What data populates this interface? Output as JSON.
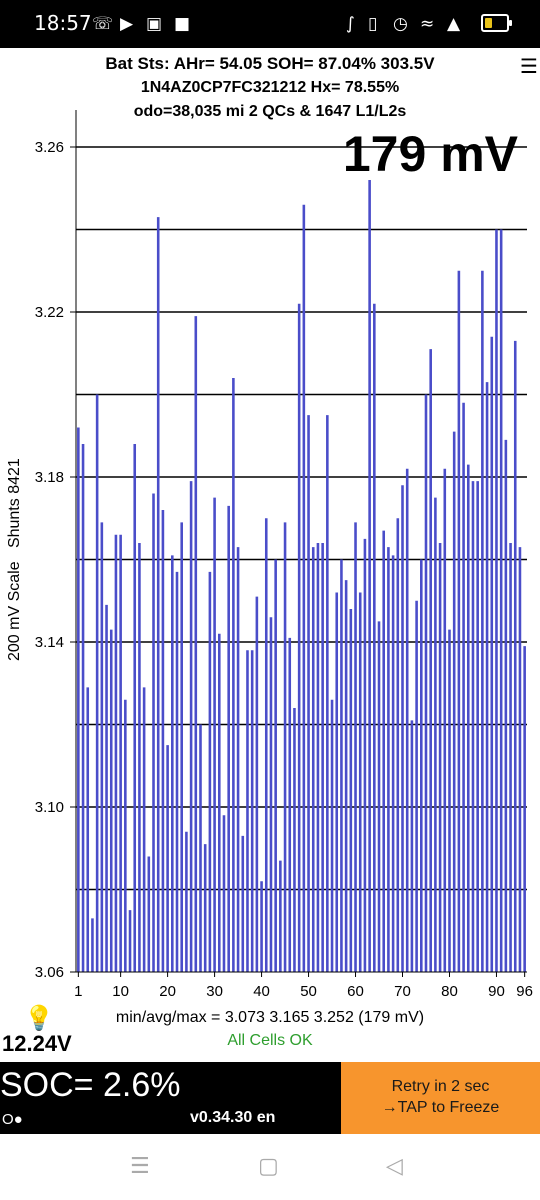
{
  "status_bar": {
    "time": "18:57",
    "left_icons": [
      "whatsapp-icon",
      "youtube-icon",
      "gallery-icon",
      "notification-square-icon"
    ],
    "right_icons": [
      "bluetooth-icon",
      "vibrate-icon",
      "alarm-icon",
      "wifi-icon",
      "4g-signal-icon",
      "battery-icon"
    ],
    "battery_level": 0.2
  },
  "header": {
    "line1": "Bat Sts: AHr= 54.05 SOH= 87.04% 303.5V",
    "line2": "1N4AZ0CP7FC321212   Hx= 78.55%",
    "line3": "odo=38,035 mi  2 QCs & 1647 L1/L2s",
    "menu_glyph": "☰"
  },
  "spread_display": "179 mV",
  "y_axis_label": "200 mV Scale   Shunts 8421",
  "chart_data": {
    "type": "bar",
    "ylim": [
      3.06,
      3.26
    ],
    "yticks": [
      "3.06",
      "3.10",
      "3.14",
      "3.18",
      "3.22",
      "3.26"
    ],
    "ytick_values": [
      3.06,
      3.1,
      3.14,
      3.18,
      3.22,
      3.26
    ],
    "grid_values": [
      3.08,
      3.1,
      3.12,
      3.14,
      3.16,
      3.18,
      3.2,
      3.22,
      3.24,
      3.26
    ],
    "xticks": [
      "1",
      "10",
      "20",
      "30",
      "40",
      "50",
      "60",
      "70",
      "80",
      "90",
      "96"
    ],
    "xtick_cells": [
      1,
      10,
      20,
      30,
      40,
      50,
      60,
      70,
      80,
      90,
      96
    ],
    "cell_count": 96,
    "bar_color": "#4a4dc9",
    "grid": true,
    "values": [
      3.192,
      3.188,
      3.129,
      3.073,
      3.2,
      3.169,
      3.149,
      3.143,
      3.166,
      3.166,
      3.126,
      3.075,
      3.188,
      3.164,
      3.129,
      3.088,
      3.176,
      3.243,
      3.172,
      3.115,
      3.161,
      3.157,
      3.169,
      3.094,
      3.179,
      3.219,
      3.12,
      3.091,
      3.157,
      3.175,
      3.142,
      3.098,
      3.173,
      3.204,
      3.163,
      3.093,
      3.138,
      3.138,
      3.151,
      3.082,
      3.17,
      3.146,
      3.16,
      3.087,
      3.169,
      3.141,
      3.124,
      3.222,
      3.246,
      3.195,
      3.163,
      3.164,
      3.164,
      3.195,
      3.126,
      3.152,
      3.16,
      3.155,
      3.148,
      3.169,
      3.152,
      3.165,
      3.252,
      3.222,
      3.145,
      3.167,
      3.163,
      3.161,
      3.17,
      3.178,
      3.182,
      3.121,
      3.15,
      3.16,
      3.2,
      3.211,
      3.175,
      3.164,
      3.182,
      3.143,
      3.191,
      3.23,
      3.198,
      3.183,
      3.179,
      3.179,
      3.23,
      3.203,
      3.214,
      3.24,
      3.24,
      3.189,
      3.164,
      3.213,
      3.163,
      3.139
    ]
  },
  "stats_line": "min/avg/max = 3.073 3.165 3.252  (179 mV)",
  "cells_status": "All Cells OK",
  "aux_voltage": "12.24V",
  "bulb_icon": "lightbulb-icon",
  "footer": {
    "soc": "SOC= 2.6%",
    "status_glyphs": "O●",
    "version": "v0.34.30 en",
    "retry_line1": "Retry in 2 sec",
    "retry_line2": "→TAP to Freeze",
    "retry_color": "#f7952d"
  },
  "nav": {
    "recents_glyph": "☰",
    "home_glyph": "▢",
    "back_glyph": "◁"
  }
}
